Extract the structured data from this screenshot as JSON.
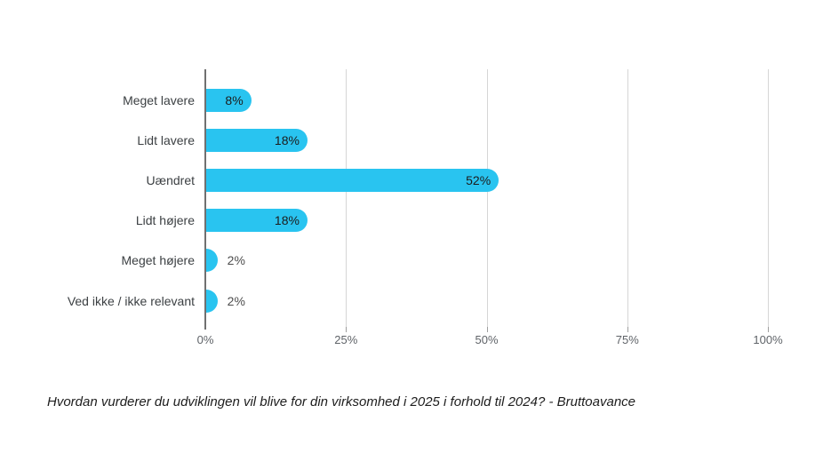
{
  "page": {
    "background_color": "#ffffff"
  },
  "chart_data": {
    "type": "bar",
    "orientation": "horizontal",
    "title": "",
    "caption": "Hvordan vurderer du udviklingen vil blive for din virksomhed i 2025 i forhold til 2024? - Bruttoavance",
    "categories": [
      "Meget lavere",
      "Lidt lavere",
      "Uændret",
      "Lidt højere",
      "Meget højere",
      "Ved ikke / ikke relevant"
    ],
    "values": [
      8,
      18,
      52,
      18,
      2,
      2
    ],
    "value_labels": [
      "8%",
      "18%",
      "52%",
      "18%",
      "2%",
      "2%"
    ],
    "x_ticks": [
      "0%",
      "25%",
      "50%",
      "75%",
      "100%"
    ],
    "x_tick_values": [
      0,
      25,
      50,
      75,
      100
    ],
    "xlim": [
      0,
      100
    ],
    "grid": true,
    "legend": "none",
    "bar_color": "#29c4f0",
    "gridline_color": "#d6d6d6",
    "axis_line_color": "#707070"
  }
}
